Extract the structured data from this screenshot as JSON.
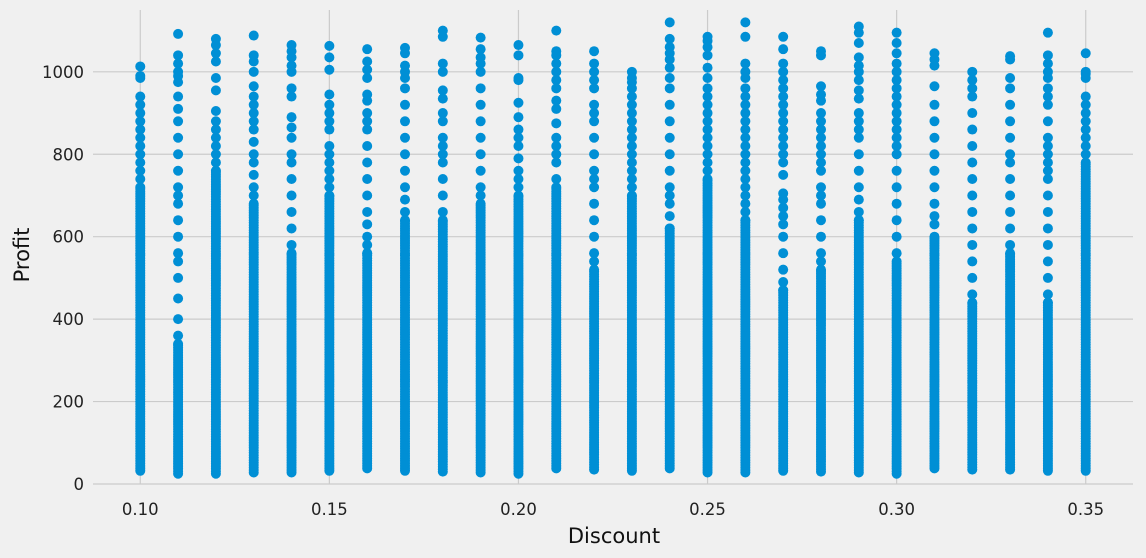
{
  "chart_data": {
    "type": "scatter",
    "title": "",
    "xlabel": "Discount",
    "ylabel": "Profit",
    "xlim": [
      0.0875,
      0.3625
    ],
    "ylim": [
      0,
      1150
    ],
    "grid": true,
    "marker_color": "#008fd5",
    "background": "#f0f0f0",
    "grid_color": "#cbcbcb",
    "xticks": [
      {
        "value": 0.1,
        "label": "0.10"
      },
      {
        "value": 0.15,
        "label": "0.15"
      },
      {
        "value": 0.2,
        "label": "0.20"
      },
      {
        "value": 0.25,
        "label": "0.25"
      },
      {
        "value": 0.3,
        "label": "0.30"
      },
      {
        "value": 0.35,
        "label": "0.35"
      }
    ],
    "yticks": [
      {
        "value": 0,
        "label": "0"
      },
      {
        "value": 200,
        "label": "200"
      },
      {
        "value": 400,
        "label": "400"
      },
      {
        "value": 600,
        "label": "600"
      },
      {
        "value": 800,
        "label": "800"
      },
      {
        "value": 1000,
        "label": "1000"
      }
    ],
    "columns": [
      {
        "x": 0.1,
        "y_min": 32,
        "y_dense_max": 720,
        "scattered": [
          740,
          760,
          780,
          800,
          820,
          840,
          860,
          880,
          900,
          920,
          940,
          985,
          990,
          1013
        ]
      },
      {
        "x": 0.11,
        "y_min": 25,
        "y_dense_max": 340,
        "scattered": [
          360,
          400,
          450,
          500,
          540,
          560,
          600,
          640,
          680,
          700,
          720,
          760,
          800,
          840,
          880,
          910,
          940,
          975,
          990,
          1000,
          1020,
          1040,
          1092
        ]
      },
      {
        "x": 0.12,
        "y_min": 25,
        "y_dense_max": 760,
        "scattered": [
          780,
          800,
          820,
          840,
          860,
          880,
          905,
          955,
          985,
          1025,
          1045,
          1065,
          1080
        ]
      },
      {
        "x": 0.13,
        "y_min": 28,
        "y_dense_max": 680,
        "scattered": [
          700,
          720,
          750,
          780,
          800,
          830,
          860,
          880,
          900,
          920,
          940,
          965,
          1000,
          1025,
          1040,
          1088
        ]
      },
      {
        "x": 0.14,
        "y_min": 28,
        "y_dense_max": 560,
        "scattered": [
          580,
          620,
          660,
          700,
          740,
          780,
          800,
          840,
          865,
          890,
          940,
          960,
          1000,
          1015,
          1035,
          1050,
          1065
        ]
      },
      {
        "x": 0.15,
        "y_min": 32,
        "y_dense_max": 700,
        "scattered": [
          720,
          740,
          760,
          780,
          800,
          820,
          860,
          880,
          900,
          920,
          945,
          1005,
          1035,
          1063
        ]
      },
      {
        "x": 0.16,
        "y_min": 38,
        "y_dense_max": 560,
        "scattered": [
          580,
          600,
          630,
          660,
          700,
          740,
          780,
          820,
          860,
          880,
          900,
          930,
          945,
          985,
          1005,
          1025,
          1055
        ]
      },
      {
        "x": 0.17,
        "y_min": 32,
        "y_dense_max": 640,
        "scattered": [
          660,
          690,
          720,
          760,
          800,
          840,
          880,
          920,
          960,
          985,
          1000,
          1015,
          1045,
          1058
        ]
      },
      {
        "x": 0.18,
        "y_min": 30,
        "y_dense_max": 640,
        "scattered": [
          660,
          700,
          740,
          780,
          800,
          820,
          840,
          880,
          900,
          935,
          955,
          1000,
          1020,
          1085,
          1100
        ]
      },
      {
        "x": 0.19,
        "y_min": 28,
        "y_dense_max": 680,
        "scattered": [
          700,
          720,
          760,
          800,
          840,
          880,
          920,
          960,
          1000,
          1020,
          1035,
          1055,
          1083
        ]
      },
      {
        "x": 0.2,
        "y_min": 25,
        "y_dense_max": 700,
        "scattered": [
          720,
          740,
          760,
          790,
          820,
          840,
          860,
          890,
          925,
          980,
          985,
          1040,
          1065
        ]
      },
      {
        "x": 0.21,
        "y_min": 38,
        "y_dense_max": 720,
        "scattered": [
          740,
          780,
          800,
          820,
          840,
          875,
          910,
          930,
          960,
          980,
          1000,
          1020,
          1040,
          1050,
          1100
        ]
      },
      {
        "x": 0.22,
        "y_min": 35,
        "y_dense_max": 520,
        "scattered": [
          540,
          560,
          600,
          640,
          680,
          720,
          740,
          760,
          800,
          840,
          880,
          900,
          920,
          960,
          980,
          1000,
          1020,
          1050
        ]
      },
      {
        "x": 0.23,
        "y_min": 32,
        "y_dense_max": 700,
        "scattered": [
          720,
          740,
          760,
          780,
          800,
          820,
          840,
          860,
          880,
          900,
          920,
          940,
          960,
          975,
          985,
          1000
        ]
      },
      {
        "x": 0.24,
        "y_min": 38,
        "y_dense_max": 620,
        "scattered": [
          650,
          680,
          700,
          720,
          760,
          800,
          840,
          880,
          920,
          960,
          985,
          1010,
          1030,
          1045,
          1060,
          1080,
          1120
        ]
      },
      {
        "x": 0.25,
        "y_min": 28,
        "y_dense_max": 740,
        "scattered": [
          760,
          780,
          800,
          820,
          840,
          860,
          880,
          900,
          920,
          940,
          960,
          985,
          1010,
          1040,
          1060,
          1075,
          1085
        ]
      },
      {
        "x": 0.26,
        "y_min": 28,
        "y_dense_max": 640,
        "scattered": [
          660,
          680,
          700,
          720,
          740,
          760,
          780,
          800,
          820,
          840,
          860,
          880,
          900,
          920,
          940,
          960,
          985,
          1000,
          1020,
          1085,
          1120
        ]
      },
      {
        "x": 0.27,
        "y_min": 32,
        "y_dense_max": 470,
        "scattered": [
          490,
          520,
          560,
          600,
          630,
          650,
          670,
          690,
          705,
          750,
          780,
          800,
          820,
          840,
          860,
          880,
          900,
          920,
          940,
          960,
          980,
          1000,
          1020,
          1055,
          1085
        ]
      },
      {
        "x": 0.28,
        "y_min": 30,
        "y_dense_max": 520,
        "scattered": [
          540,
          560,
          600,
          640,
          680,
          700,
          720,
          760,
          780,
          800,
          820,
          840,
          860,
          880,
          900,
          930,
          945,
          965,
          1040,
          1050
        ]
      },
      {
        "x": 0.29,
        "y_min": 28,
        "y_dense_max": 640,
        "scattered": [
          660,
          690,
          720,
          760,
          800,
          840,
          860,
          880,
          900,
          935,
          955,
          980,
          1000,
          1015,
          1035,
          1070,
          1095,
          1110
        ]
      },
      {
        "x": 0.3,
        "y_min": 25,
        "y_dense_max": 540,
        "scattered": [
          560,
          600,
          640,
          680,
          720,
          760,
          800,
          820,
          840,
          860,
          880,
          900,
          920,
          940,
          960,
          980,
          1000,
          1020,
          1045,
          1070,
          1095
        ]
      },
      {
        "x": 0.31,
        "y_min": 38,
        "y_dense_max": 600,
        "scattered": [
          630,
          650,
          680,
          720,
          760,
          800,
          840,
          880,
          920,
          965,
          1015,
          1030,
          1045
        ]
      },
      {
        "x": 0.32,
        "y_min": 35,
        "y_dense_max": 440,
        "scattered": [
          460,
          500,
          540,
          580,
          620,
          660,
          700,
          740,
          780,
          820,
          860,
          900,
          940,
          960,
          980,
          1000
        ]
      },
      {
        "x": 0.33,
        "y_min": 35,
        "y_dense_max": 560,
        "scattered": [
          580,
          620,
          660,
          700,
          740,
          780,
          800,
          840,
          880,
          920,
          960,
          985,
          1030,
          1038
        ]
      },
      {
        "x": 0.34,
        "y_min": 32,
        "y_dense_max": 440,
        "scattered": [
          460,
          500,
          540,
          580,
          620,
          660,
          700,
          740,
          760,
          780,
          800,
          820,
          840,
          880,
          920,
          940,
          960,
          985,
          1000,
          1020,
          1040,
          1095
        ]
      },
      {
        "x": 0.35,
        "y_min": 32,
        "y_dense_max": 780,
        "scattered": [
          800,
          820,
          840,
          860,
          880,
          900,
          920,
          940,
          985,
          995,
          1000,
          1045
        ]
      }
    ]
  }
}
